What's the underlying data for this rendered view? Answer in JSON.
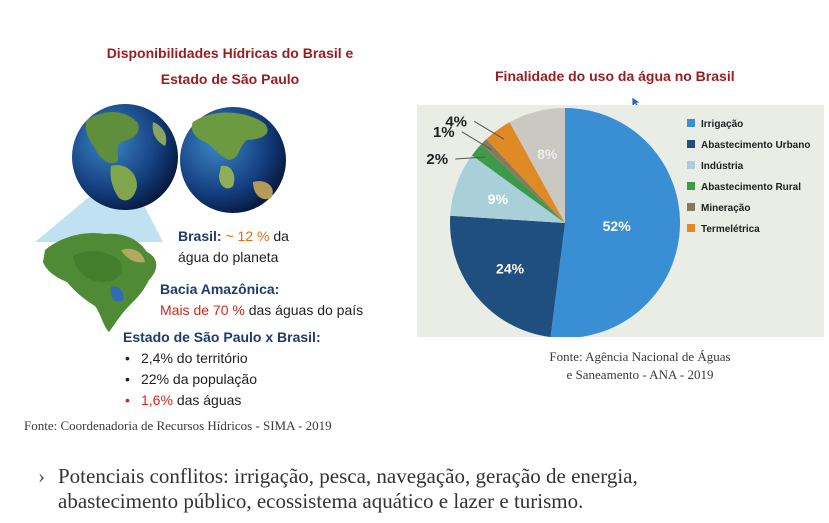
{
  "left": {
    "title_line1": "Disponibilidades Hídricas do Brasil e",
    "title_line2": "Estado de São Paulo",
    "brasil_label": "Brasil:",
    "brasil_pct": "~ 12 %",
    "brasil_suffix": "da",
    "brasil_line2": "água do planeta",
    "bacia_title": "Bacia Amazônica:",
    "bacia_pct": "Mais de 70 %",
    "bacia_rest": "das águas do país",
    "sp_title": "Estado de São Paulo x Brasil:",
    "sp_items": [
      {
        "text": "2,4% do território"
      },
      {
        "text": "22% da população"
      },
      {
        "pct": "1,6%",
        "text": "das águas"
      }
    ],
    "source": "Fonte: Coordenadoria de Recursos Hídricos - SIMA - 2019"
  },
  "right": {
    "title": "Finalidade do uso da água no Brasil",
    "source_line1": "Fonte: Agência Nacional de Águas",
    "source_line2": "e Saneamento - ANA - 2019"
  },
  "bottom": {
    "chevron": "›",
    "text_line1": "Potenciais conflitos: irrigação, pesca, navegação, geração de energia,",
    "text_line2": "abastecimento público, ecossistema aquático e lazer e turismo."
  },
  "chart_data": {
    "type": "pie",
    "title": "Finalidade do uso da água no Brasil",
    "categories": [
      "Irrigação",
      "Abastecimento Urbano",
      "Indústria",
      "Abastecimento Rural",
      "Mineração",
      "Termelétrica"
    ],
    "values": [
      52,
      24,
      9,
      2,
      1,
      4
    ],
    "labels": [
      "52%",
      "24%",
      "9%",
      "2%",
      "1%",
      "4%"
    ],
    "other_label": "8%",
    "other_value": 8,
    "colors": [
      "#3a8fd4",
      "#1e4f7f",
      "#a9cfd9",
      "#3d9a49",
      "#8a7a5d",
      "#e08a25"
    ],
    "other_color": "#c9c9c2",
    "legend_position": "right"
  }
}
